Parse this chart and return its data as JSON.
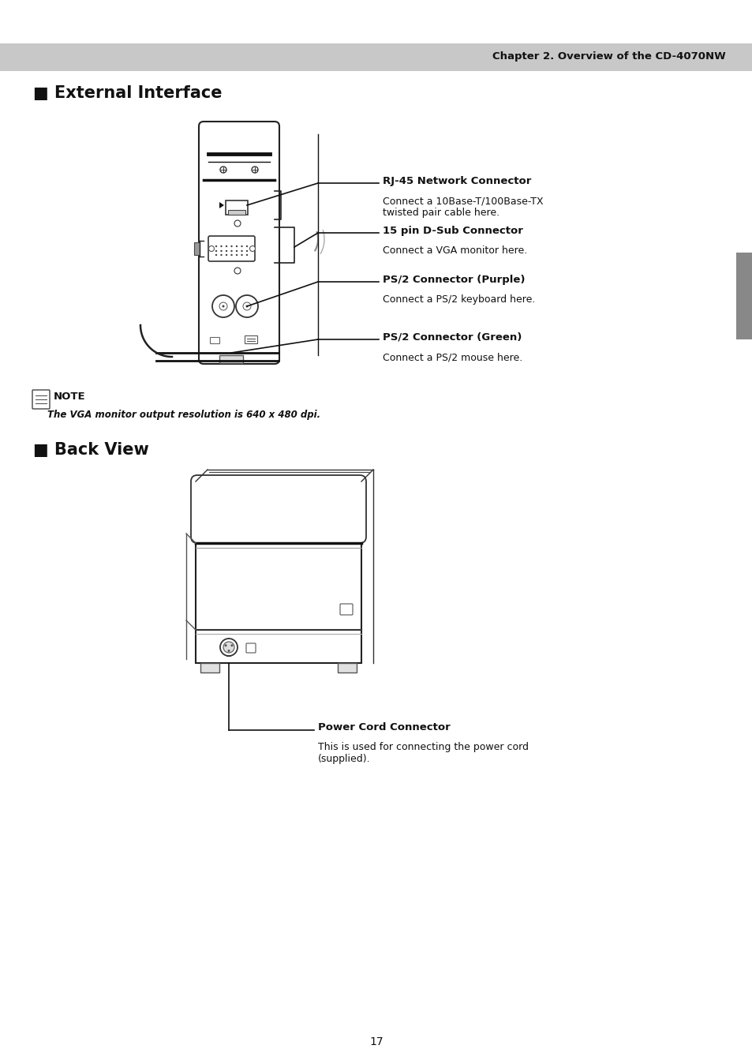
{
  "bg_color": "#ffffff",
  "header_bg": "#c8c8c8",
  "header_text": "Chapter 2. Overview of the CD-4070NW",
  "section1_title": "■ External Interface",
  "section2_title": "■ Back View",
  "note_title": "NOTE",
  "note_text": "The VGA monitor output resolution is 640 x 480 dpi.",
  "annotations": [
    {
      "label": "RJ-45 Network Connector",
      "desc": "Connect a 10Base-T/100Base-TX\ntwisted pair cable here."
    },
    {
      "label": "15 pin D-Sub Connector",
      "desc": "Connect a VGA monitor here."
    },
    {
      "label": "PS/2 Connector (Purple)",
      "desc": "Connect a PS/2 keyboard here."
    },
    {
      "label": "PS/2 Connector (Green)",
      "desc": "Connect a PS/2 mouse here."
    }
  ],
  "back_view_label": "Power Cord Connector",
  "back_view_desc": "This is used for connecting the power cord\n(supplied).",
  "page_number": "17",
  "tab_color": "#888888"
}
